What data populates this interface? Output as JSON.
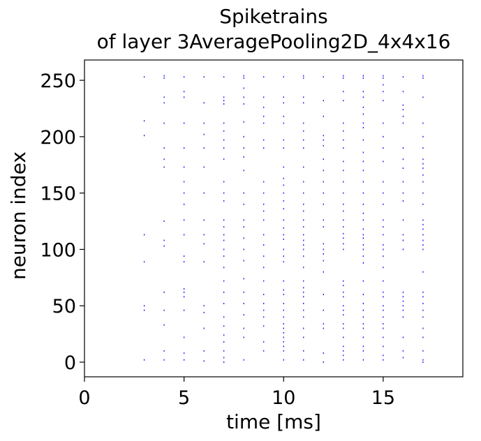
{
  "chart_data": {
    "type": "scatter",
    "title_line1": "Spiketrains",
    "title_line2": "of layer 3AveragePooling2D_4x4x16",
    "xlabel": "time [ms]",
    "ylabel": "neuron index",
    "xlim": [
      0,
      19
    ],
    "ylim": [
      -13,
      268
    ],
    "x_ticks": [
      0,
      5,
      10,
      15
    ],
    "y_ticks": [
      0,
      50,
      100,
      150,
      200,
      250
    ],
    "x_tick_labels": [
      "0",
      "5",
      "10",
      "15"
    ],
    "y_tick_labels": [
      "0",
      "50",
      "100",
      "150",
      "200",
      "250"
    ],
    "grid": false,
    "legend": "none",
    "marker_color": "#0000ff",
    "series": [
      {
        "values": [
          {
            "t": 3,
            "neurons": [
              2,
              46,
              50,
              89,
              113,
              201,
              214,
              253
            ]
          },
          {
            "t": 4,
            "neurons": [
              2,
              10,
              33,
              46,
              62,
              103,
              108,
              125,
              173,
              180,
              190,
              212,
              230,
              235,
              252,
              254
            ]
          },
          {
            "t": 5,
            "neurons": [
              2,
              8,
              22,
              46,
              58,
              62,
              65,
              89,
              94,
              113,
              126,
              140,
              150,
              160,
              173,
              190,
              212,
              235,
              240,
              253
            ]
          },
          {
            "t": 6,
            "neurons": [
              1,
              10,
              30,
              44,
              50,
              89,
              105,
              113,
              126,
              150,
              173,
              190,
              202,
              212,
              230,
              253
            ]
          },
          {
            "t": 7,
            "neurons": [
              0,
              4,
              10,
              18,
              24,
              32,
              40,
              52,
              62,
              72,
              84,
              94,
              100,
              108,
              113,
              120,
              126,
              143,
              150,
              160,
              180,
              190,
              197,
              205,
              212,
              229,
              232,
              235,
              253
            ]
          },
          {
            "t": 8,
            "neurons": [
              2,
              22,
              30,
              42,
              52,
              62,
              74,
              90,
              100,
              110,
              120,
              126,
              140,
              150,
              170,
              182,
              190,
              200,
              213,
              229,
              235,
              243,
              252,
              254
            ]
          },
          {
            "t": 9,
            "neurons": [
              10,
              18,
              32,
              40,
              46,
              52,
              60,
              72,
              84,
              94,
              104,
              113,
              126,
              134,
              140,
              150,
              160,
              190,
              197,
              212,
              218,
              226,
              235,
              253
            ]
          },
          {
            "t": 10,
            "neurons": [
              2,
              10,
              14,
              18,
              22,
              26,
              30,
              34,
              40,
              46,
              52,
              60,
              64,
              72,
              89,
              94,
              100,
              109,
              113,
              119,
              126,
              136,
              143,
              150,
              157,
              163,
              173,
              190,
              197,
              212,
              218,
              230,
              235,
              253
            ]
          },
          {
            "t": 11,
            "neurons": [
              2,
              10,
              22,
              30,
              40,
              46,
              52,
              58,
              62,
              66,
              72,
              84,
              94,
              100,
              104,
              108,
              113,
              120,
              126,
              134,
              140,
              150,
              160,
              173,
              190,
              197,
              205,
              212,
              230,
              235,
              252,
              254
            ]
          },
          {
            "t": 12,
            "neurons": [
              0,
              8,
              30,
              34,
              46,
              60,
              80,
              90,
              96,
              100,
              105,
              120,
              126,
              140,
              150,
              160,
              170,
              180,
              192,
              197,
              201,
              218,
              232,
              253
            ]
          },
          {
            "t": 13,
            "neurons": [
              2,
              6,
              10,
              14,
              22,
              30,
              34,
              42,
              46,
              50,
              58,
              62,
              68,
              72,
              100,
              105,
              110,
              114,
              120,
              126,
              134,
              140,
              150,
              160,
              170,
              178,
              190,
              197,
              205,
              212,
              232,
              240,
              252,
              254
            ]
          },
          {
            "t": 14,
            "neurons": [
              2,
              10,
              14,
              22,
              30,
              34,
              40,
              46,
              52,
              60,
              72,
              88,
              94,
              100,
              104,
              110,
              113,
              118,
              126,
              132,
              140,
              150,
              160,
              170,
              178,
              186,
              197,
              208,
              212,
              220,
              226,
              235,
              240,
              252,
              254
            ]
          },
          {
            "t": 15,
            "neurons": [
              2,
              6,
              14,
              22,
              30,
              34,
              40,
              46,
              50,
              58,
              62,
              72,
              84,
              94,
              100,
              104,
              113,
              120,
              126,
              140,
              150,
              160,
              178,
              190,
              200,
              212,
              232,
              240,
              246,
              252,
              254
            ]
          },
          {
            "t": 16,
            "neurons": [
              4,
              10,
              22,
              40,
              46,
              50,
              54,
              58,
              62,
              100,
              108,
              113,
              126,
              143,
              150,
              160,
              172,
              180,
              190,
              212,
              218,
              224,
              228,
              240,
              253
            ]
          },
          {
            "t": 17,
            "neurons": [
              0,
              2,
              10,
              22,
              30,
              40,
              46,
              52,
              58,
              62,
              80,
              100,
              104,
              108,
              113,
              118,
              122,
              126,
              140,
              150,
              160,
              166,
              172,
              176,
              180,
              190,
              200,
              212,
              235,
              252,
              254
            ]
          }
        ]
      }
    ]
  }
}
